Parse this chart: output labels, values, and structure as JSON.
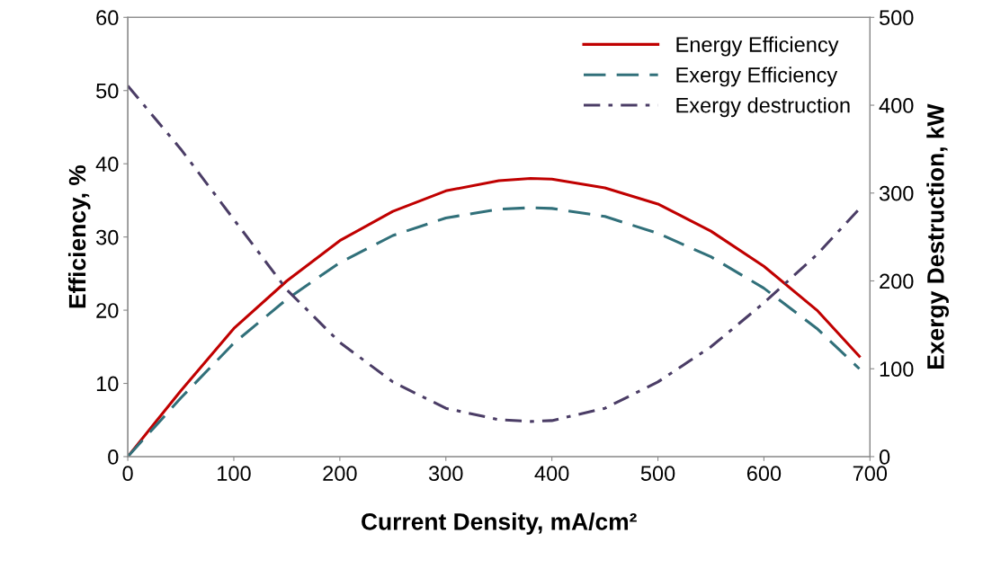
{
  "chart_data": {
    "type": "line",
    "xlabel": "Current Density, mA/cm²",
    "ylabel": "Efficiency, %",
    "y2label": "Exergy Destruction, kW",
    "x": [
      0,
      25,
      50,
      100,
      150,
      200,
      250,
      300,
      350,
      380,
      400,
      450,
      500,
      550,
      600,
      650,
      690
    ],
    "series": [
      {
        "name": "Energy Efficiency",
        "color": "#c00000",
        "line_style": "solid",
        "values": [
          0,
          4.5,
          9,
          17.5,
          24,
          29.5,
          33.5,
          36.3,
          37.7,
          38,
          37.9,
          36.7,
          34.5,
          30.8,
          26,
          20,
          13.7
        ]
      },
      {
        "name": "Exergy Efficiency",
        "color": "#31707a",
        "line_style": "dashed",
        "values": [
          0,
          4,
          8,
          15.5,
          21.5,
          26.5,
          30.2,
          32.6,
          33.8,
          34,
          33.9,
          32.8,
          30.5,
          27.3,
          23,
          17.5,
          12
        ]
      },
      {
        "name": "Exergy destruction",
        "color": "#4b3d66",
        "line_style": "dashdot",
        "axis": "y2",
        "values": [
          422,
          386,
          350,
          270,
          190,
          130,
          85,
          55,
          42,
          40,
          41,
          55,
          85,
          125,
          175,
          230,
          282
        ]
      }
    ],
    "xlim": [
      0,
      700
    ],
    "xticks": [
      0,
      100,
      200,
      300,
      400,
      500,
      600,
      700
    ],
    "ylim": [
      0,
      60
    ],
    "yticks": [
      0,
      10,
      20,
      30,
      40,
      50,
      60
    ],
    "y2lim": [
      0,
      500
    ],
    "y2ticks": [
      0,
      100,
      200,
      300,
      400,
      500
    ],
    "legend": "top right",
    "grid": false
  }
}
